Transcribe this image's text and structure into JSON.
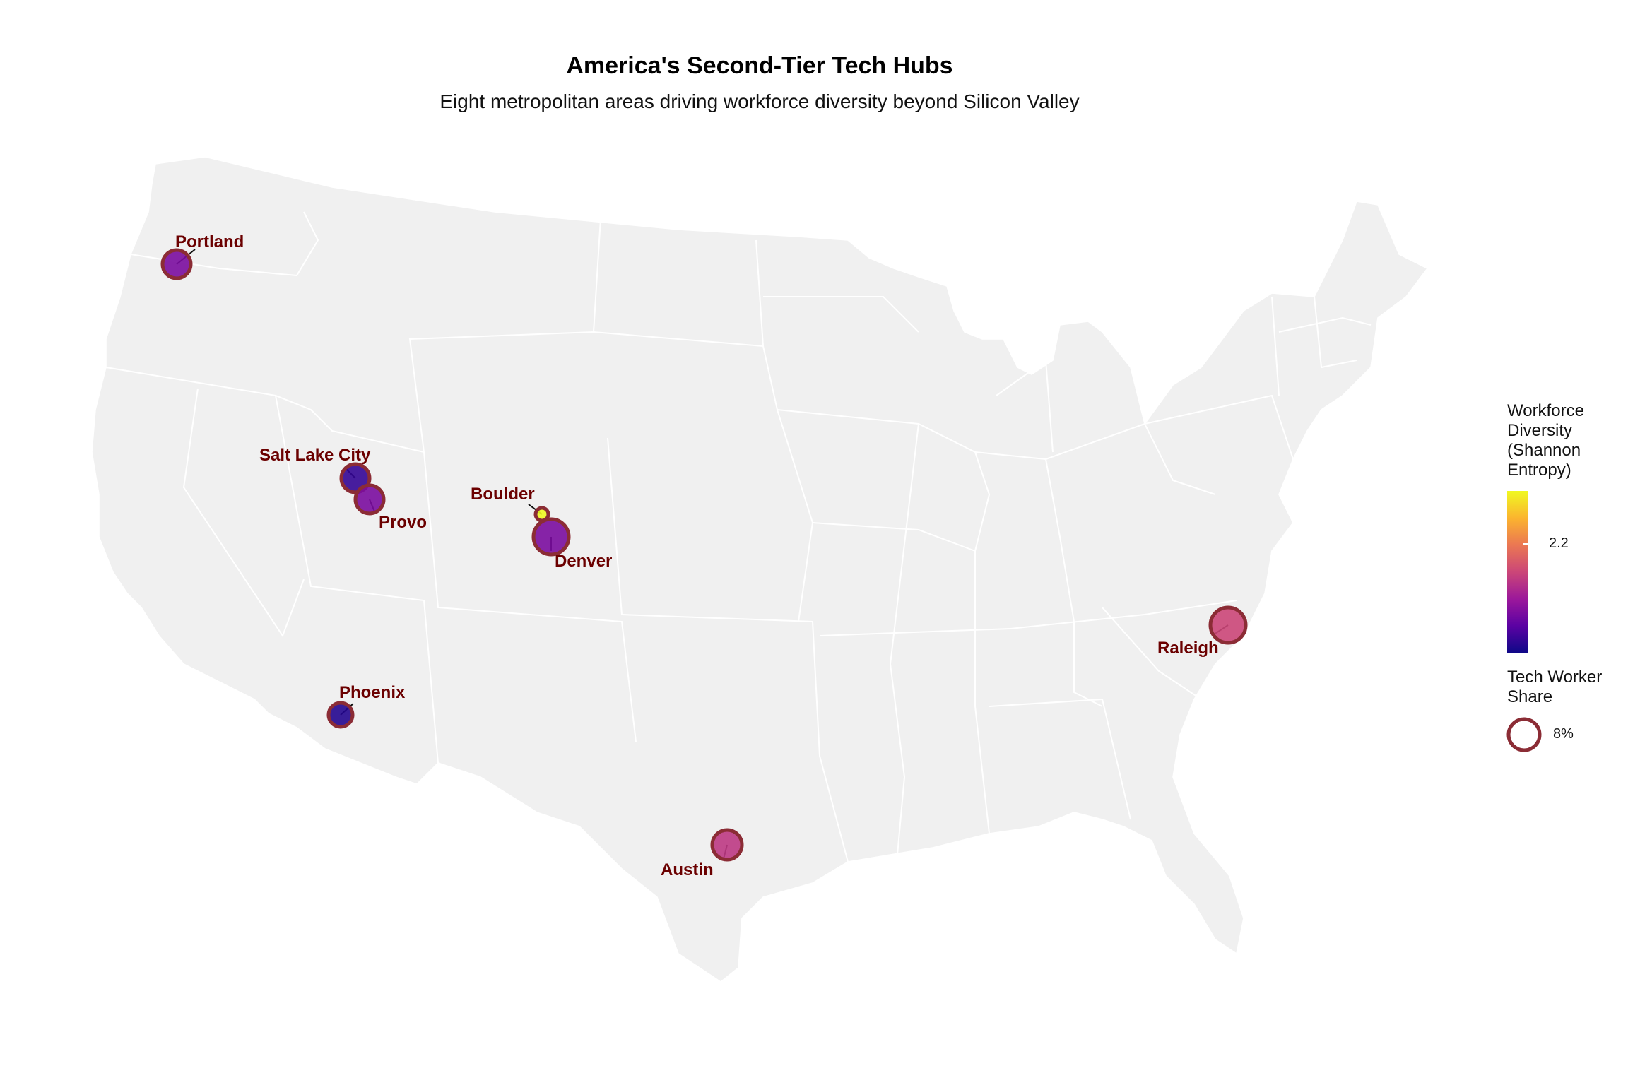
{
  "title": "America's Second-Tier Tech Hubs",
  "subtitle": "Eight metropolitan areas driving workforce diversity beyond Silicon Valley",
  "legend": {
    "color_title_lines": [
      "Workforce",
      "Diversity",
      "(Shannon",
      "Entropy)"
    ],
    "color_tick": "2.2",
    "size_title_lines": [
      "Tech Worker",
      "Share"
    ],
    "size_tick": "8%"
  },
  "colors": {
    "land": "#f0f0f0",
    "borders": "#ffffff",
    "bubble_outline": "#8b2c35",
    "label": "#6b0000",
    "scale": [
      "#0d0887",
      "#5b02a3",
      "#9a179b",
      "#cb4678",
      "#eb7852",
      "#fbb32f",
      "#f0f921"
    ]
  },
  "chart_data": {
    "type": "bubble-map",
    "region": "Contiguous United States",
    "color_variable": "Workforce Diversity (Shannon Entropy)",
    "size_variable": "Tech Worker Share",
    "color_range": [
      1.85,
      2.45
    ],
    "points": [
      {
        "city": "Portland",
        "lon": -122.68,
        "lat": 45.52,
        "diversity": 2.0,
        "tech_share": 8.5
      },
      {
        "city": "Salt Lake City",
        "lon": -111.89,
        "lat": 40.76,
        "diversity": 1.9,
        "tech_share": 8.5
      },
      {
        "city": "Provo",
        "lon": -111.66,
        "lat": 40.23,
        "diversity": 2.0,
        "tech_share": 8.7
      },
      {
        "city": "Boulder",
        "lon": -105.27,
        "lat": 40.01,
        "diversity": 2.45,
        "tech_share": 3.0
      },
      {
        "city": "Denver",
        "lon": -104.99,
        "lat": 39.74,
        "diversity": 2.0,
        "tech_share": 11.0
      },
      {
        "city": "Phoenix",
        "lon": -112.07,
        "lat": 33.45,
        "diversity": 1.88,
        "tech_share": 6.5
      },
      {
        "city": "Austin",
        "lon": -97.74,
        "lat": 30.27,
        "diversity": 2.12,
        "tech_share": 8.8
      },
      {
        "city": "Raleigh",
        "lon": -78.64,
        "lat": 35.78,
        "diversity": 2.15,
        "tech_share": 11.0
      }
    ]
  }
}
